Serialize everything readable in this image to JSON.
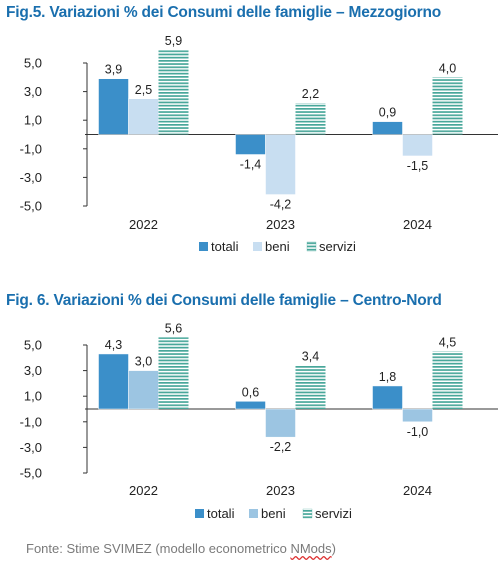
{
  "chart_data": [
    {
      "type": "bar",
      "title": "Fig.5.  Variazioni % dei Consumi delle famiglie – Mezzogiorno",
      "categories": [
        "2022",
        "2023",
        "2024"
      ],
      "series": [
        {
          "name": "totali",
          "values": [
            3.9,
            -1.4,
            0.9
          ],
          "labels": [
            "3,9",
            "-1,4",
            "0,9"
          ],
          "color": "#3b8fc9",
          "pattern": "solid"
        },
        {
          "name": "beni",
          "values": [
            2.5,
            -4.2,
            -1.5
          ],
          "labels": [
            "2,5",
            "-4,2",
            "-1,5"
          ],
          "color": "#c8def1",
          "pattern": "solid"
        },
        {
          "name": "servizi",
          "values": [
            5.9,
            2.2,
            4.0
          ],
          "labels": [
            "5,9",
            "2,2",
            "4,0"
          ],
          "color": "#48a79a",
          "pattern": "hstripes"
        }
      ],
      "ylim": [
        -5.0,
        5.9
      ],
      "yticks": [
        5.0,
        3.0,
        1.0,
        -1.0,
        -3.0,
        -5.0
      ],
      "ytick_labels": [
        "5,0",
        "3,0",
        "1,0",
        "-1,0",
        "-3,0",
        "-5,0"
      ],
      "legend_position": "bottom",
      "grid": false
    },
    {
      "type": "bar",
      "title": "Fig. 6. Variazioni % dei Consumi delle famiglie – Centro-Nord",
      "categories": [
        "2022",
        "2023",
        "2024"
      ],
      "series": [
        {
          "name": "totali",
          "values": [
            4.3,
            0.6,
            1.8
          ],
          "labels": [
            "4,3",
            "0,6",
            "1,8"
          ],
          "color": "#3b8fc9",
          "pattern": "solid"
        },
        {
          "name": "beni",
          "values": [
            3.0,
            -2.2,
            -1.0
          ],
          "labels": [
            "3,0",
            "-2,2",
            "-1,0"
          ],
          "color": "#9cc5e2",
          "pattern": "solid"
        },
        {
          "name": "servizi",
          "values": [
            5.6,
            3.4,
            4.5
          ],
          "labels": [
            "5,6",
            "3,4",
            "4,5"
          ],
          "color": "#48a79a",
          "pattern": "hstripes"
        }
      ],
      "ylim": [
        -5.0,
        5.9
      ],
      "yticks": [
        5.0,
        3.0,
        1.0,
        -1.0,
        -3.0,
        -5.0
      ],
      "ytick_labels": [
        "5,0",
        "3,0",
        "1,0",
        "-1,0",
        "-3,0",
        "-5,0"
      ],
      "legend_position": "bottom",
      "grid": false
    }
  ],
  "source": {
    "prefix": "Fonte: Stime SVIMEZ (modello econometrico ",
    "squiggle_word": "NMods",
    "suffix": ")"
  }
}
